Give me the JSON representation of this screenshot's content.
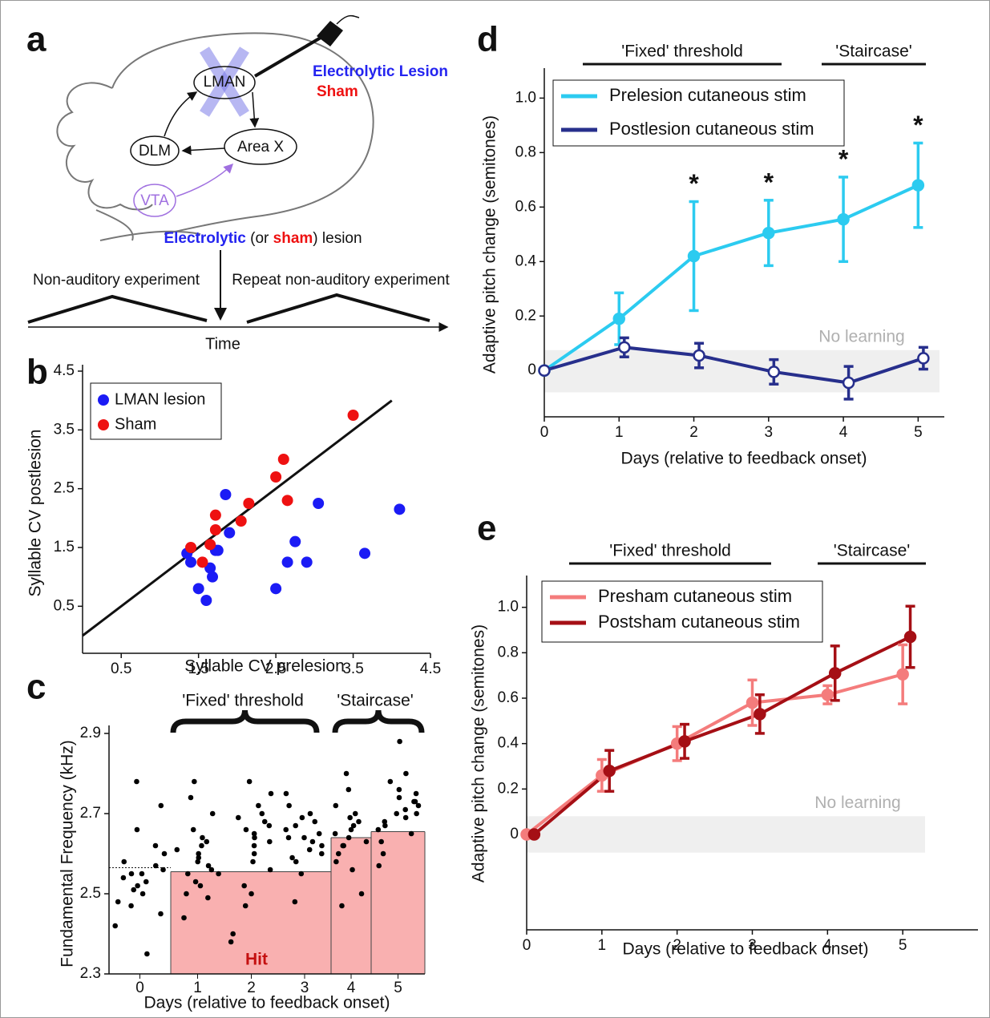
{
  "panel_labels": [
    "a",
    "b",
    "c",
    "d",
    "e"
  ],
  "diagram": {
    "nodes": [
      "LMAN",
      "Area X",
      "DLM",
      "VTA"
    ],
    "lesion_legend": [
      "Electrolytic Lesion",
      "Sham"
    ],
    "lesion_caption": [
      "Electrolytic",
      " (or ",
      "sham",
      ") lesion"
    ],
    "experiments": [
      "Non-auditory experiment",
      "Repeat non-auditory experiment"
    ],
    "time_label": "Time"
  },
  "chart_data": [
    {
      "type": "scatter",
      "xlabel": "Syllable CV prelesion",
      "ylabel": "Syllable CV postlesion",
      "xlim": [
        0,
        4.5
      ],
      "ylim": [
        -0.3,
        4.5
      ],
      "xticks": [
        0.5,
        1.5,
        2.5,
        3.5,
        4.5
      ],
      "yticks": [
        0.5,
        1.5,
        2.5,
        3.5,
        4.5
      ],
      "legend": "upper left",
      "reference_line": {
        "x": [
          0,
          4
        ],
        "values": [
          0,
          4
        ]
      },
      "series": [
        {
          "name": "LMAN lesion",
          "color": "#1b1bf5",
          "x": [
            1.85,
            1.9,
            1.75,
            1.72,
            1.65,
            1.68,
            1.4,
            1.35,
            1.5,
            1.6,
            2.5,
            2.65,
            2.75,
            2.9,
            3.05,
            3.65,
            4.1
          ],
          "values": [
            2.4,
            1.75,
            1.45,
            1.45,
            1.15,
            1.0,
            1.25,
            1.4,
            0.8,
            0.6,
            0.8,
            1.25,
            1.6,
            1.25,
            2.25,
            1.4,
            2.15
          ]
        },
        {
          "name": "Sham",
          "color": "#ee1111",
          "x": [
            1.4,
            1.55,
            1.65,
            1.72,
            1.72,
            2.05,
            2.15,
            2.5,
            2.6,
            2.65,
            3.5
          ],
          "values": [
            1.5,
            1.25,
            1.55,
            1.8,
            2.05,
            1.95,
            2.25,
            2.7,
            3.0,
            2.3,
            3.75
          ]
        }
      ]
    },
    {
      "type": "strip",
      "xlabel": "Days (relative to feedback onset)",
      "ylabel": "Fundamental Frequency (kHz)",
      "categories": [
        "0",
        "1",
        "2",
        "3",
        "4",
        "5"
      ],
      "ylim": [
        2.3,
        2.9
      ],
      "yticks": [
        2.3,
        2.5,
        2.7,
        2.9
      ],
      "points": [
        [
          2.42,
          2.45,
          2.48,
          2.5,
          2.51,
          2.52,
          2.53,
          2.54,
          2.55,
          2.55,
          2.56,
          2.57,
          2.58,
          2.6,
          2.62,
          2.66,
          2.72,
          2.78,
          2.35,
          2.47
        ],
        [
          2.44,
          2.49,
          2.52,
          2.53,
          2.55,
          2.56,
          2.57,
          2.58,
          2.59,
          2.6,
          2.61,
          2.62,
          2.64,
          2.66,
          2.7,
          2.74,
          2.78,
          2.5,
          2.55,
          2.63
        ],
        [
          2.38,
          2.4,
          2.47,
          2.52,
          2.56,
          2.58,
          2.6,
          2.62,
          2.64,
          2.65,
          2.66,
          2.67,
          2.68,
          2.69,
          2.7,
          2.72,
          2.75,
          2.78,
          2.63,
          2.5
        ],
        [
          2.48,
          2.55,
          2.58,
          2.6,
          2.61,
          2.62,
          2.63,
          2.64,
          2.65,
          2.66,
          2.67,
          2.68,
          2.7,
          2.72,
          2.75,
          2.59,
          2.64,
          2.69
        ],
        [
          2.47,
          2.5,
          2.56,
          2.58,
          2.6,
          2.62,
          2.63,
          2.64,
          2.65,
          2.66,
          2.67,
          2.68,
          2.7,
          2.72,
          2.76,
          2.8,
          2.62,
          2.69
        ],
        [
          2.57,
          2.6,
          2.63,
          2.65,
          2.67,
          2.68,
          2.69,
          2.7,
          2.71,
          2.72,
          2.73,
          2.74,
          2.75,
          2.76,
          2.78,
          2.8,
          2.88,
          2.7,
          2.66,
          2.73
        ]
      ],
      "thresholds": [
        null,
        2.555,
        2.555,
        2.555,
        2.64,
        2.655
      ],
      "baseline_threshold": 2.565,
      "hit_label": "Hit",
      "hit_color": "#f9b0b0",
      "point_color": "#000000",
      "brackets": [
        "'Fixed' threshold",
        "'Staircase'"
      ]
    },
    {
      "type": "line",
      "xlabel": "Days (relative to feedback onset)",
      "ylabel": "Adaptive pitch change (semitones)",
      "xlim": [
        0,
        5.35
      ],
      "ylim": [
        -0.17,
        1.11
      ],
      "xticks": [
        0,
        1,
        2,
        3,
        4,
        5
      ],
      "yticks": [
        0,
        0.2,
        0.4,
        0.6,
        0.8,
        {
          "value": 1,
          "label": "1.0"
        }
      ],
      "legend": "upper left",
      "series": [
        {
          "name": "Prelesion cutaneous stim",
          "color": "#2ccbf0",
          "marker_fill": "#2ccbf0",
          "x": [
            0,
            1,
            2,
            3,
            4,
            5
          ],
          "values": [
            0,
            0.19,
            0.42,
            0.505,
            0.555,
            0.68
          ],
          "errors": [
            0,
            0.095,
            0.2,
            0.12,
            0.155,
            0.155
          ]
        },
        {
          "name": "Postlesion cutaneous stim",
          "color": "#272f8c",
          "marker_fill": "#ffffff",
          "x": [
            0,
            1.07,
            2.07,
            3.07,
            4.07,
            5.07
          ],
          "values": [
            0,
            0.085,
            0.055,
            -0.005,
            -0.045,
            0.045
          ],
          "errors": [
            0,
            0.035,
            0.045,
            0.045,
            0.06,
            0.04
          ]
        }
      ],
      "no_learning": {
        "label": "No learning",
        "range": [
          -0.08,
          0.075
        ]
      },
      "significance": {
        "x": [
          2,
          3,
          4,
          5
        ],
        "labels": [
          "*",
          "*",
          "*",
          "*"
        ]
      },
      "phases": [
        "'Fixed' threshold",
        "'Staircase'"
      ]
    },
    {
      "type": "line",
      "xlabel": "Days (relative to feedback onset)",
      "ylabel": "Adaptive pitch change (semitones)",
      "xlim": [
        0,
        6
      ],
      "ylim": [
        -0.42,
        1.14
      ],
      "xticks": [
        0,
        1,
        2,
        3,
        4,
        5
      ],
      "yticks": [
        0,
        0.2,
        0.4,
        0.6,
        0.8,
        {
          "value": 1,
          "label": "1.0"
        }
      ],
      "legend": "upper left",
      "series": [
        {
          "name": "Presham cutaneous stim",
          "color": "#f47c7c",
          "marker_fill": "#f47c7c",
          "x": [
            0,
            1,
            2,
            3,
            4,
            5
          ],
          "values": [
            0,
            0.26,
            0.4,
            0.58,
            0.615,
            0.705
          ],
          "errors": [
            0,
            0.07,
            0.075,
            0.1,
            0.04,
            0.13
          ]
        },
        {
          "name": "Postsham cutaneous stim",
          "color": "#a50f15",
          "marker_fill": "#a50f15",
          "x": [
            0.1,
            1.1,
            2.1,
            3.1,
            4.1,
            5.1
          ],
          "values": [
            0,
            0.28,
            0.41,
            0.53,
            0.71,
            0.87
          ],
          "errors": [
            0,
            0.09,
            0.075,
            0.085,
            0.12,
            0.135
          ]
        }
      ],
      "no_learning": {
        "label": "No learning",
        "range": [
          -0.08,
          0.08
        ]
      },
      "phases": [
        "'Fixed' threshold",
        "'Staircase'"
      ]
    }
  ]
}
